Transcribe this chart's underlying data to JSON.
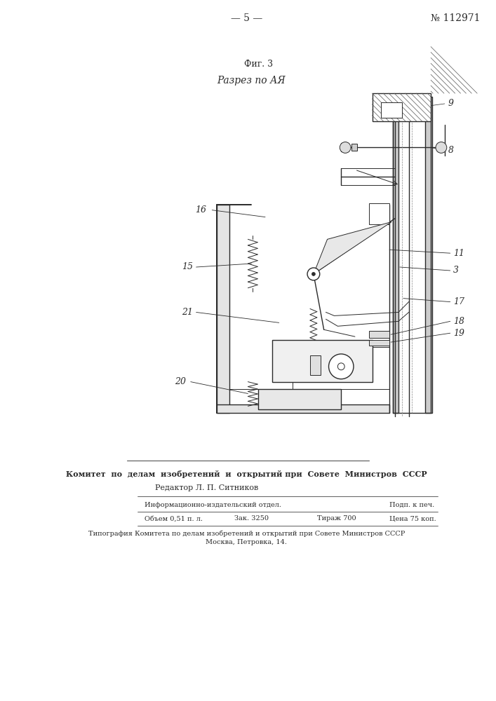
{
  "bg_color": "#ffffff",
  "line_color": "#2a2a2a",
  "page_number": "— 5 —",
  "patent_number": "№ 112971",
  "fig_label": "Фиг. 3",
  "section_label": "Разрез по АЯ",
  "footer_line1": "Комитет  по  делам  изобретений  и  открытий при  Совете  Министров  СССР",
  "footer_line2": "Редактор Л. П. Ситников",
  "footer_line3a": "Информационно-издательский отдел.",
  "footer_line3b": "Подп. к печ.",
  "footer_line4a": "Объем 0,51 п. л.",
  "footer_line4b": "Зак. 3250",
  "footer_line4c": "Тираж 700",
  "footer_line4d": "Цена 75 коп.",
  "footer_line5": "Типография Комитета по делам изобретений и открытий при Совете Министров СССР",
  "footer_line6": "Москва, Петровка, 14."
}
